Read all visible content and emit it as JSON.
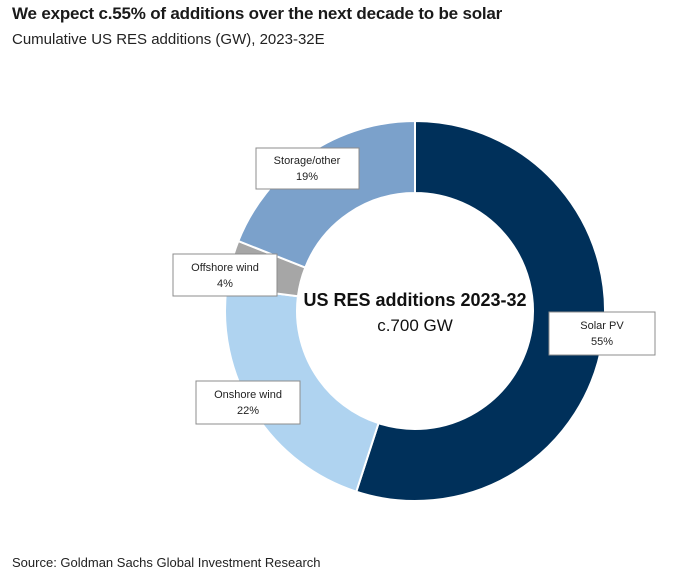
{
  "title": "We expect c.55% of additions over the next decade to be solar",
  "subtitle": "Cumulative US RES additions (GW), 2023-32E",
  "source": "Source: Goldman Sachs Global Investment Research",
  "chart_data": {
    "type": "pie",
    "variant": "donut",
    "center_label": "US RES additions 2023-32",
    "center_value": "c.700 GW",
    "slices": [
      {
        "name": "Solar PV",
        "value": 55,
        "label": "55%",
        "color": "#00305a"
      },
      {
        "name": "Onshore wind",
        "value": 22,
        "label": "22%",
        "color": "#afd3f0"
      },
      {
        "name": "Offshore wind",
        "value": 4,
        "label": "4%",
        "color": "#a6a6a6"
      },
      {
        "name": "Storage/other",
        "value": 19,
        "label": "19%",
        "color": "#7ba1cb"
      }
    ]
  }
}
